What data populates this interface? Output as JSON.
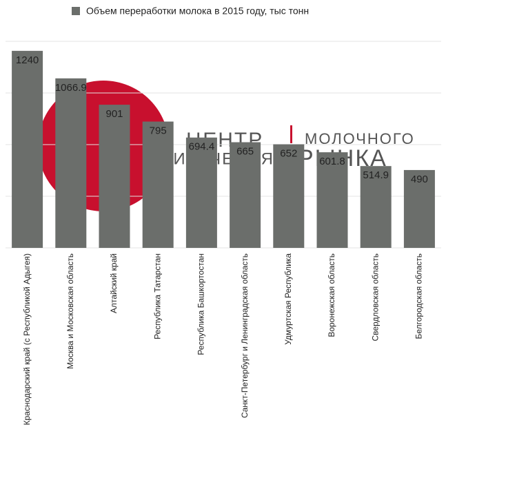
{
  "chart_data": {
    "type": "bar",
    "legend_label": "Объем переработки молока в 2015 году, тыс тонн",
    "categories": [
      "Краснодарский край (с Республикой Адыгея)",
      "Москва и Московская область",
      "Алтайский край",
      "Республика Татарстан",
      "Республика Башкортостан",
      "Санкт-Петербург и Ленинградская область",
      "Удмуртская Республика",
      "Воронежская область",
      "Свердловская область",
      "Белгородская область"
    ],
    "values": [
      1240,
      1066.9,
      901,
      795,
      694.4,
      665,
      652,
      601.8,
      514.9,
      490
    ],
    "color": "#6b6e6b",
    "ylim": [
      0,
      1300
    ],
    "yticks": [
      0,
      325,
      650,
      975,
      1300
    ],
    "grid": true,
    "watermark": [
      "ЦЕНТР",
      "МОЛОЧНОГО",
      "ИЗУЧЕНИЯ",
      "РЫНКА"
    ]
  }
}
